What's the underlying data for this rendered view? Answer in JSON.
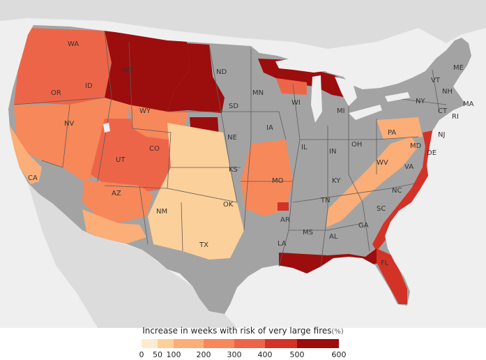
{
  "map": {
    "colors": {
      "ocean": "#efefef",
      "land_other": "#dcdcdc",
      "no_data": "#a3a3a3",
      "state_border": "#5c5c5c",
      "lake": "#efefef"
    },
    "states": [
      {
        "abbr": "WA"
      },
      {
        "abbr": "OR"
      },
      {
        "abbr": "ID"
      },
      {
        "abbr": "MT"
      },
      {
        "abbr": "ND"
      },
      {
        "abbr": "MN"
      },
      {
        "abbr": "WI"
      },
      {
        "abbr": "MI"
      },
      {
        "abbr": "NV"
      },
      {
        "abbr": "WY"
      },
      {
        "abbr": "SD"
      },
      {
        "abbr": "IA"
      },
      {
        "abbr": "CA"
      },
      {
        "abbr": "UT"
      },
      {
        "abbr": "CO"
      },
      {
        "abbr": "NE"
      },
      {
        "abbr": "IL"
      },
      {
        "abbr": "IN"
      },
      {
        "abbr": "OH"
      },
      {
        "abbr": "PA"
      },
      {
        "abbr": "NY"
      },
      {
        "abbr": "VT"
      },
      {
        "abbr": "NH"
      },
      {
        "abbr": "ME"
      },
      {
        "abbr": "MA"
      },
      {
        "abbr": "CT"
      },
      {
        "abbr": "RI"
      },
      {
        "abbr": "NJ"
      },
      {
        "abbr": "MD"
      },
      {
        "abbr": "DE"
      },
      {
        "abbr": "WV"
      },
      {
        "abbr": "VA"
      },
      {
        "abbr": "KS"
      },
      {
        "abbr": "MO"
      },
      {
        "abbr": "KY"
      },
      {
        "abbr": "NC"
      },
      {
        "abbr": "AZ"
      },
      {
        "abbr": "NM"
      },
      {
        "abbr": "OK"
      },
      {
        "abbr": "TN"
      },
      {
        "abbr": "SC"
      },
      {
        "abbr": "AR"
      },
      {
        "abbr": "GA"
      },
      {
        "abbr": "AL"
      },
      {
        "abbr": "MS"
      },
      {
        "abbr": "TX"
      },
      {
        "abbr": "LA"
      },
      {
        "abbr": "FL"
      }
    ],
    "regions": [
      {
        "name": "pacific-northwest",
        "level": 4
      },
      {
        "name": "northern-rockies",
        "level": 6
      },
      {
        "name": "north-dakota-west",
        "level": 6
      },
      {
        "name": "black-hills",
        "level": 6
      },
      {
        "name": "great-basin",
        "level": 3
      },
      {
        "name": "utah-colorado",
        "level": 4
      },
      {
        "name": "oregon-east",
        "level": 3
      },
      {
        "name": "california-coast",
        "level": 2
      },
      {
        "name": "arizona",
        "level": 3
      },
      {
        "name": "southwest-pale",
        "level": 2
      },
      {
        "name": "southern-plains",
        "level": 1
      },
      {
        "name": "missouri-kansas",
        "level": 3
      },
      {
        "name": "ozarks",
        "level": 5
      },
      {
        "name": "upper-michigan",
        "level": 6
      },
      {
        "name": "wisconsin-north",
        "level": 4
      },
      {
        "name": "appalachia",
        "level": 2
      },
      {
        "name": "pennsylvania",
        "level": 2
      },
      {
        "name": "atlantic-coast",
        "level": 5
      },
      {
        "name": "gulf-coast",
        "level": 6
      },
      {
        "name": "florida",
        "level": 5
      }
    ]
  },
  "legend": {
    "title": "Increase in weeks with risk of very large fires",
    "unit": "(%)",
    "ticks": [
      "0",
      "50",
      "100",
      "200",
      "300",
      "400",
      "500",
      "600"
    ],
    "bins": [
      {
        "from": 0,
        "to": 50,
        "color": "#fdebd0"
      },
      {
        "from": 50,
        "to": 100,
        "color": "#fcd09a"
      },
      {
        "from": 100,
        "to": 200,
        "color": "#fbae78"
      },
      {
        "from": 200,
        "to": 300,
        "color": "#f6885a"
      },
      {
        "from": 300,
        "to": 400,
        "color": "#ed6548"
      },
      {
        "from": 400,
        "to": 500,
        "color": "#d33226"
      },
      {
        "from": 500,
        "to": 600,
        "color": "#9c0d0d"
      }
    ]
  }
}
